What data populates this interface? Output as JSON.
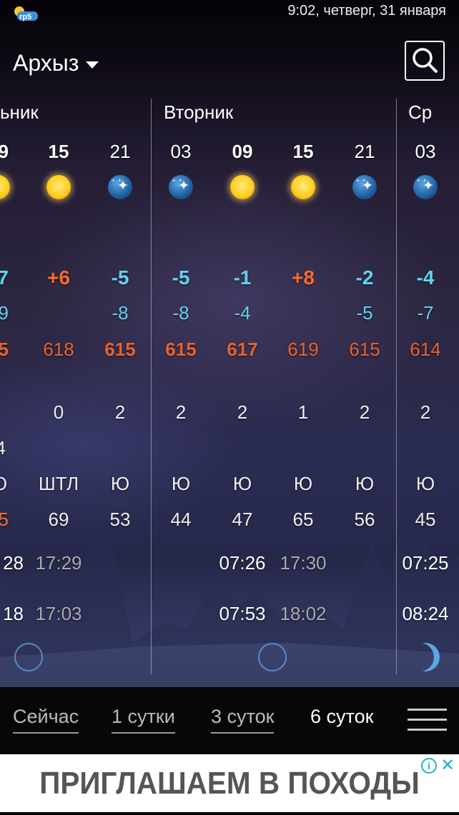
{
  "status_bar": {
    "datetime": "9:02, четверг, 31 января",
    "logo_text": "rp5"
  },
  "header": {
    "city": "Архыз"
  },
  "days": [
    {
      "name": "ьник"
    },
    {
      "name": "Вторник"
    },
    {
      "name": "Ср"
    }
  ],
  "columns": [
    {
      "hour": "9",
      "icon": "sun",
      "temp": "7",
      "temp_color": "#5fd3ef",
      "feels": "9",
      "pressure": "5",
      "pressure_bold": true,
      "wind": "",
      "gust": "4",
      "dir": "Ю",
      "humidity": "5",
      "humidity_color": "#ff6a2a",
      "sun_time": "28",
      "moon_time": "18"
    },
    {
      "hour": "15",
      "icon": "sun",
      "temp": "+6",
      "temp_color": "#ff6a2a",
      "feels": "",
      "pressure": "618",
      "pressure_bold": false,
      "wind": "0",
      "gust": "",
      "dir": "ШТЛ",
      "humidity": "69",
      "humidity_color": "#eeeeee",
      "sun_time": "17:29",
      "moon_time": "17:03"
    },
    {
      "hour": "21",
      "icon": "night",
      "temp": "-5",
      "temp_color": "#5fd3ef",
      "feels": "-8",
      "pressure": "615",
      "pressure_bold": true,
      "wind": "2",
      "gust": "",
      "dir": "Ю",
      "humidity": "53",
      "humidity_color": "#eeeeee",
      "sun_time": "",
      "moon_time": ""
    },
    {
      "hour": "03",
      "icon": "night",
      "temp": "-5",
      "temp_color": "#5fd3ef",
      "feels": "-8",
      "pressure": "615",
      "pressure_bold": true,
      "wind": "2",
      "gust": "",
      "dir": "Ю",
      "humidity": "44",
      "humidity_color": "#eeeeee",
      "sun_time": "",
      "moon_time": ""
    },
    {
      "hour": "09",
      "icon": "sun",
      "temp": "-1",
      "temp_color": "#5fd3ef",
      "feels": "-4",
      "pressure": "617",
      "pressure_bold": true,
      "wind": "2",
      "gust": "",
      "dir": "Ю",
      "humidity": "47",
      "humidity_color": "#eeeeee",
      "sun_time": "07:26",
      "moon_time": "07:53"
    },
    {
      "hour": "15",
      "icon": "sun",
      "temp": "+8",
      "temp_color": "#ff6a2a",
      "feels": "",
      "pressure": "619",
      "pressure_bold": false,
      "wind": "1",
      "gust": "",
      "dir": "Ю",
      "humidity": "65",
      "humidity_color": "#eeeeee",
      "sun_time": "17:30",
      "moon_time": "18:02"
    },
    {
      "hour": "21",
      "icon": "night",
      "temp": "-2",
      "temp_color": "#5fd3ef",
      "feels": "-5",
      "pressure": "615",
      "pressure_bold": false,
      "wind": "2",
      "gust": "",
      "dir": "Ю",
      "humidity": "56",
      "humidity_color": "#eeeeee",
      "sun_time": "",
      "moon_time": ""
    },
    {
      "hour": "03",
      "icon": "night",
      "temp": "-4",
      "temp_color": "#5fd3ef",
      "feels": "-7",
      "pressure": "614",
      "pressure_bold": false,
      "wind": "2",
      "gust": "",
      "dir": "Ю",
      "humidity": "45",
      "humidity_color": "#eeeeee",
      "sun_time": "07:25",
      "moon_time": "08:24"
    }
  ],
  "moon_phases": [
    "new-moon",
    "new-moon",
    "waxing-crescent"
  ],
  "tabs": [
    {
      "label": "Сейчас",
      "active": false
    },
    {
      "label": "1 сутки",
      "active": false
    },
    {
      "label": "3 суток",
      "active": false
    },
    {
      "label": "6 суток",
      "active": true
    }
  ],
  "ad": {
    "text": "ПРИГЛАШАЕМ В ПОХОДЫ",
    "info_label": "i",
    "close_label": "✕"
  },
  "colors": {
    "cold": "#5fd3ef",
    "warm": "#ff6a2a",
    "pressure": "#e8622a"
  }
}
